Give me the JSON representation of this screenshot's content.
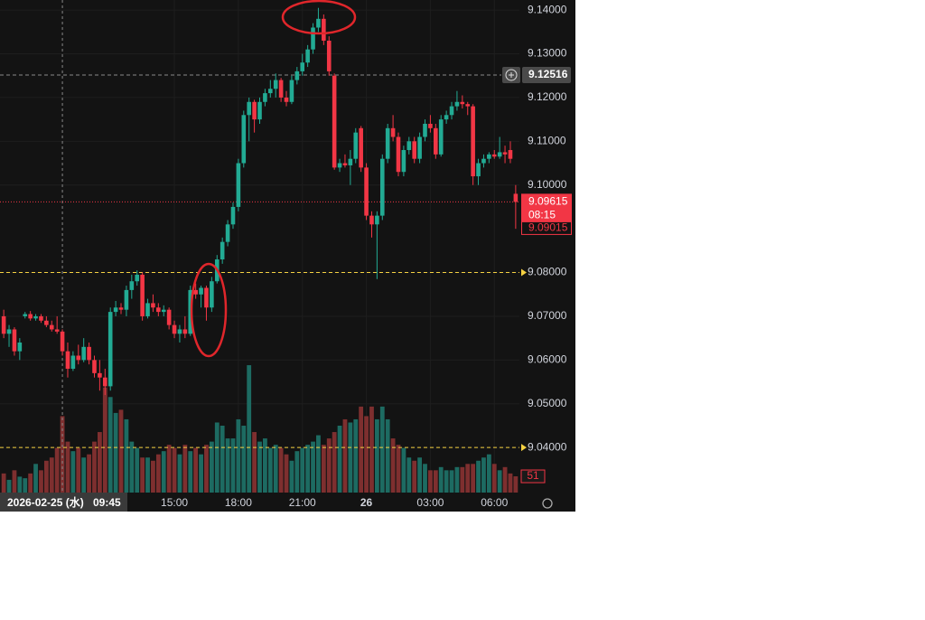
{
  "chart_data": {
    "type": "candlestick",
    "xlim": [
      -0.7,
      96.7
    ],
    "xticks": [
      {
        "value": 32,
        "label": "15:00"
      },
      {
        "value": 44,
        "label": "18:00"
      },
      {
        "value": 56,
        "label": "21:00"
      },
      {
        "value": 68,
        "label": "26"
      },
      {
        "value": 80,
        "label": "03:00"
      },
      {
        "value": 92,
        "label": "06:00"
      }
    ],
    "ylim": [
      9.0297,
      9.1423
    ],
    "yticks": [
      {
        "value": 9.14,
        "label": "9.14000"
      },
      {
        "value": 9.13,
        "label": "9.13000"
      },
      {
        "value": 9.12,
        "label": "9.12000"
      },
      {
        "value": 9.11,
        "label": "9.11000"
      },
      {
        "value": 9.1,
        "label": "9.10000"
      },
      {
        "value": 9.08,
        "label": "9.08000"
      },
      {
        "value": 9.07,
        "label": "9.07000"
      },
      {
        "value": 9.06,
        "label": "9.06000"
      },
      {
        "value": 9.05,
        "label": "9.05000"
      },
      {
        "value": 9.04,
        "label": "9.04000"
      }
    ],
    "grid": true,
    "up_color": "#22ab94",
    "down_color": "#f23645",
    "volume_up_color": "#1d6b62",
    "volume_down_color": "#7e2f2f",
    "alert_lines": [
      9.08,
      9.04
    ],
    "alert_color": "#f5d142",
    "crosshair": {
      "x": 11,
      "date": "2026-02-25 (水)",
      "time": "09:45",
      "price": {
        "value": 9.12516,
        "label": "9.12516"
      }
    },
    "current_price": {
      "value": 9.09615,
      "label": "9.09615"
    },
    "countdown": "08:15",
    "second_price": {
      "value": 9.09015,
      "label": "9.09015"
    },
    "vlim": [
      0,
      420
    ],
    "candles": [
      [
        9.07,
        9.0715,
        9.065,
        9.066
      ],
      [
        9.066,
        9.068,
        9.063,
        9.067
      ],
      [
        9.067,
        9.0675,
        9.061,
        9.062
      ],
      [
        9.062,
        9.065,
        9.06,
        9.064
      ],
      [
        9.07,
        9.071,
        9.0695,
        9.0705
      ],
      [
        9.0705,
        9.0712,
        9.069,
        9.0695
      ],
      [
        9.0695,
        9.0705,
        9.069,
        9.07
      ],
      [
        9.07,
        9.0705,
        9.0685,
        9.069
      ],
      [
        9.069,
        9.07,
        9.0675,
        9.068
      ],
      [
        9.068,
        9.069,
        9.0665,
        9.067
      ],
      [
        9.067,
        9.07,
        9.066,
        9.0665
      ],
      [
        9.0665,
        9.067,
        9.061,
        9.062
      ],
      [
        9.062,
        9.064,
        9.056,
        9.058
      ],
      [
        9.058,
        9.062,
        9.0575,
        9.061
      ],
      [
        9.061,
        9.0635,
        9.059,
        9.06
      ],
      [
        9.06,
        9.065,
        9.0595,
        9.063
      ],
      [
        9.063,
        9.064,
        9.059,
        9.06
      ],
      [
        9.06,
        9.061,
        9.056,
        9.057
      ],
      [
        9.057,
        9.06,
        9.053,
        9.056
      ],
      [
        9.056,
        9.058,
        9.052,
        9.054
      ],
      [
        9.054,
        9.072,
        9.053,
        9.071
      ],
      [
        9.071,
        9.0735,
        9.07,
        9.072
      ],
      [
        9.072,
        9.073,
        9.0705,
        9.0715
      ],
      [
        9.0715,
        9.077,
        9.07,
        9.076
      ],
      [
        9.076,
        9.0795,
        9.074,
        9.078
      ],
      [
        9.078,
        9.0805,
        9.077,
        9.0795
      ],
      [
        9.0795,
        9.08,
        9.069,
        9.07
      ],
      [
        9.07,
        9.074,
        9.0695,
        9.073
      ],
      [
        9.073,
        9.075,
        9.071,
        9.072
      ],
      [
        9.072,
        9.073,
        9.07,
        9.071
      ],
      [
        9.071,
        9.0725,
        9.07,
        9.0715
      ],
      [
        9.0715,
        9.072,
        9.067,
        9.068
      ],
      [
        9.068,
        9.069,
        9.065,
        9.066
      ],
      [
        9.066,
        9.068,
        9.064,
        9.067
      ],
      [
        9.067,
        9.07,
        9.065,
        9.066
      ],
      [
        9.066,
        9.077,
        9.0655,
        9.076
      ],
      [
        9.076,
        9.0775,
        9.074,
        9.075
      ],
      [
        9.075,
        9.077,
        9.072,
        9.0765
      ],
      [
        9.0765,
        9.077,
        9.069,
        9.072
      ],
      [
        9.072,
        9.079,
        9.071,
        9.078
      ],
      [
        9.078,
        9.084,
        9.0775,
        9.083
      ],
      [
        9.083,
        9.088,
        9.082,
        9.087
      ],
      [
        9.087,
        9.092,
        9.086,
        9.091
      ],
      [
        9.091,
        9.096,
        9.09,
        9.095
      ],
      [
        9.095,
        9.106,
        9.094,
        9.105
      ],
      [
        9.105,
        9.117,
        9.104,
        9.116
      ],
      [
        9.116,
        9.12,
        9.11,
        9.119
      ],
      [
        9.119,
        9.1195,
        9.112,
        9.115
      ],
      [
        9.115,
        9.12,
        9.114,
        9.119
      ],
      [
        9.119,
        9.122,
        9.118,
        9.121
      ],
      [
        9.121,
        9.124,
        9.12,
        9.122
      ],
      [
        9.122,
        9.1255,
        9.12,
        9.124
      ],
      [
        9.124,
        9.1245,
        9.119,
        9.12
      ],
      [
        9.12,
        9.1215,
        9.118,
        9.119
      ],
      [
        9.119,
        9.125,
        9.1185,
        9.124
      ],
      [
        9.124,
        9.127,
        9.123,
        9.126
      ],
      [
        9.126,
        9.13,
        9.125,
        9.128
      ],
      [
        9.128,
        9.132,
        9.127,
        9.131
      ],
      [
        9.131,
        9.137,
        9.13,
        9.136
      ],
      [
        9.136,
        9.1405,
        9.135,
        9.138
      ],
      [
        9.138,
        9.139,
        9.132,
        9.133
      ],
      [
        9.133,
        9.134,
        9.125,
        9.126
      ],
      [
        9.125,
        9.1255,
        9.1035,
        9.104
      ],
      [
        9.104,
        9.106,
        9.103,
        9.105
      ],
      [
        9.105,
        9.107,
        9.104,
        9.1045
      ],
      [
        9.1045,
        9.108,
        9.1,
        9.106
      ],
      [
        9.106,
        9.113,
        9.105,
        9.112
      ],
      [
        9.113,
        9.1135,
        9.103,
        9.104
      ],
      [
        9.104,
        9.105,
        9.092,
        9.093
      ],
      [
        9.093,
        9.094,
        9.088,
        9.091
      ],
      [
        9.091,
        9.094,
        9.0785,
        9.093
      ],
      [
        9.093,
        9.107,
        9.092,
        9.106
      ],
      [
        9.106,
        9.114,
        9.105,
        9.113
      ],
      [
        9.113,
        9.116,
        9.11,
        9.111
      ],
      [
        9.111,
        9.112,
        9.102,
        9.103
      ],
      [
        9.103,
        9.109,
        9.102,
        9.108
      ],
      [
        9.108,
        9.111,
        9.107,
        9.11
      ],
      [
        9.11,
        9.111,
        9.105,
        9.106
      ],
      [
        9.106,
        9.112,
        9.105,
        9.111
      ],
      [
        9.111,
        9.115,
        9.11,
        9.114
      ],
      [
        9.114,
        9.116,
        9.112,
        9.113
      ],
      [
        9.113,
        9.114,
        9.106,
        9.107
      ],
      [
        9.107,
        9.116,
        9.1065,
        9.115
      ],
      [
        9.115,
        9.117,
        9.114,
        9.116
      ],
      [
        9.116,
        9.119,
        9.115,
        9.118
      ],
      [
        9.118,
        9.1215,
        9.117,
        9.119
      ],
      [
        9.119,
        9.1205,
        9.1175,
        9.1185
      ],
      [
        9.1185,
        9.119,
        9.116,
        9.118
      ],
      [
        9.118,
        9.1185,
        9.1,
        9.102
      ],
      [
        9.102,
        9.106,
        9.1,
        9.105
      ],
      [
        9.105,
        9.107,
        9.104,
        9.106
      ],
      [
        9.106,
        9.1075,
        9.105,
        9.107
      ],
      [
        9.107,
        9.108,
        9.106,
        9.1065
      ],
      [
        9.1065,
        9.111,
        9.106,
        9.1075
      ],
      [
        9.1075,
        9.109,
        9.105,
        9.107
      ],
      [
        9.108,
        9.11,
        9.105,
        9.106
      ],
      [
        9.098,
        9.1,
        9.09,
        9.09615
      ]
    ],
    "volume": [
      60,
      40,
      70,
      50,
      45,
      60,
      90,
      70,
      100,
      110,
      140,
      240,
      160,
      130,
      140,
      110,
      120,
      160,
      190,
      330,
      300,
      250,
      260,
      230,
      160,
      140,
      110,
      110,
      100,
      120,
      130,
      150,
      140,
      120,
      150,
      130,
      140,
      120,
      150,
      160,
      220,
      210,
      170,
      170,
      230,
      210,
      400,
      190,
      160,
      170,
      140,
      150,
      140,
      120,
      100,
      130,
      140,
      150,
      160,
      180,
      150,
      170,
      190,
      210,
      230,
      220,
      230,
      270,
      240,
      270,
      230,
      270,
      230,
      170,
      150,
      140,
      110,
      100,
      110,
      90,
      70,
      70,
      80,
      70,
      70,
      80,
      80,
      90,
      90,
      100,
      110,
      120,
      90,
      70,
      80,
      60,
      51
    ]
  }
}
